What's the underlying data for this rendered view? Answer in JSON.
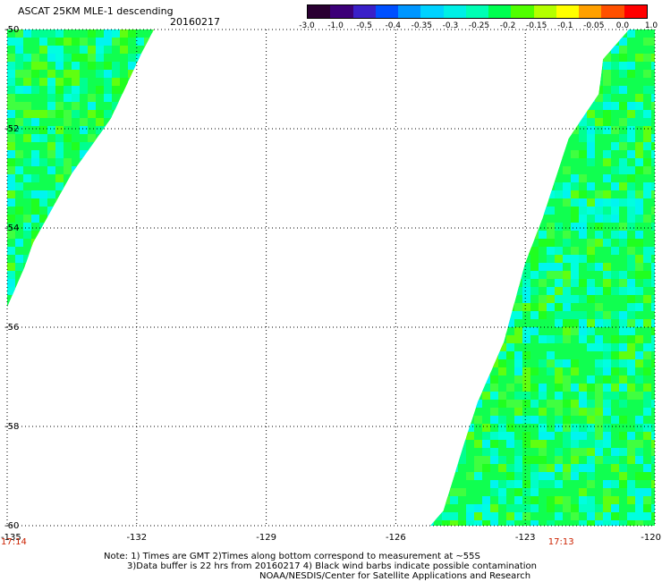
{
  "header": {
    "title": "ASCAT 25KM MLE-1 descending",
    "date": "20160217"
  },
  "colorbar": {
    "labels": [
      "-3.0",
      "-1.0",
      "-0.5",
      "-0.4",
      "-0.35",
      "-0.3",
      "-0.25",
      "-0.2",
      "-0.15",
      "-0.1",
      "-0.05",
      "0.0",
      "1.0"
    ],
    "colors": [
      "#2a0032",
      "#3c0078",
      "#3a20c8",
      "#0050ff",
      "#0096ff",
      "#00d2ff",
      "#00f0e6",
      "#00ffb4",
      "#00ff50",
      "#50ff00",
      "#b4ff00",
      "#ffff00",
      "#ffa000",
      "#ff5000",
      "#ff0000"
    ]
  },
  "map": {
    "lon_labels": [
      "-135",
      "-132",
      "-129",
      "-126",
      "-123",
      "-120"
    ],
    "lat_labels": [
      "-50",
      "-52",
      "-54",
      "-56",
      "-58",
      "-60"
    ],
    "lon_range": [
      -135,
      -120
    ],
    "lat_range": [
      -60,
      -50
    ],
    "grid": "dotted",
    "time_labels": [
      {
        "text": "17:14",
        "lon": -135
      },
      {
        "text": "17:13",
        "lon": -123
      }
    ],
    "swaths": [
      {
        "name": "west-swath",
        "polygon": [
          [
            -135,
            -50
          ],
          [
            -131.6,
            -50
          ],
          [
            -131.9,
            -50.5
          ],
          [
            -132.6,
            -51.8
          ],
          [
            -133.5,
            -52.9
          ],
          [
            -134.4,
            -54.3
          ],
          [
            -134.6,
            -54.8
          ],
          [
            -135,
            -55.6
          ]
        ]
      },
      {
        "name": "east-swath",
        "polygon": [
          [
            -120,
            -50
          ],
          [
            -120.6,
            -50
          ],
          [
            -121.2,
            -50.6
          ],
          [
            -121.3,
            -51.3
          ],
          [
            -122.0,
            -52.2
          ],
          [
            -122.6,
            -53.8
          ],
          [
            -123.0,
            -54.7
          ],
          [
            -123.5,
            -56.3
          ],
          [
            -124.1,
            -57.5
          ],
          [
            -124.4,
            -58.3
          ],
          [
            -124.9,
            -59.7
          ],
          [
            -125.2,
            -60
          ],
          [
            -120,
            -60
          ]
        ]
      }
    ]
  },
  "notes": [
    "Note: 1) Times are GMT 2)Times along bottom correspond to measurement at ~55S",
    "3)Data buffer is 22 hrs from 20160217 4) Black wind barbs indicate possible contamination",
    "NOAA/NESDIS/Center for Satellite Applications and Research"
  ]
}
